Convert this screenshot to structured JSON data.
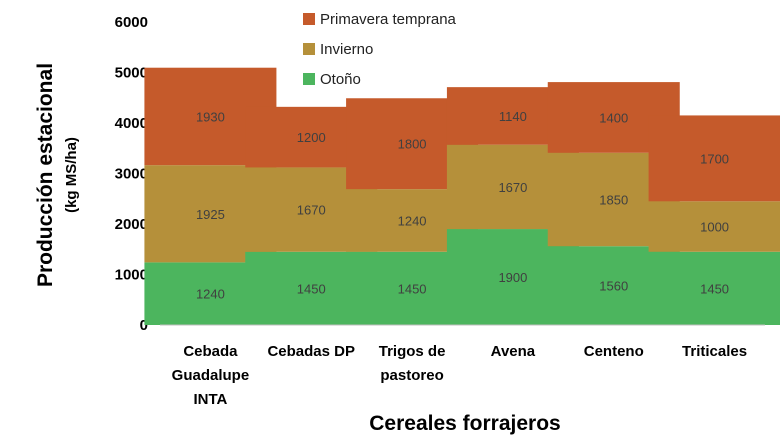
{
  "chart_data": {
    "type": "bar",
    "stacked": true,
    "title": "",
    "xlabel": "Cereales forrajeros",
    "ylabel": "Producción estacional",
    "ylabel_unit": "(kg MS/ha)",
    "ylim": [
      0,
      6000
    ],
    "yticks": [
      "0",
      "1000",
      "2000",
      "3000",
      "4000",
      "5000",
      "6000"
    ],
    "grid": false,
    "legend_position": "top-center",
    "categories": [
      [
        "Cebada",
        "Guadalupe",
        "INTA"
      ],
      [
        "Cebadas DP"
      ],
      [
        "Trigos de",
        "pastoreo"
      ],
      [
        "Avena"
      ],
      [
        "Centeno"
      ],
      [
        "Triticales"
      ]
    ],
    "series": [
      {
        "name": "Otoño",
        "color": "#4CB55E",
        "values": [
          1240,
          1450,
          1450,
          1900,
          1560,
          1450
        ]
      },
      {
        "name": "Invierno",
        "color": "#B5903A",
        "values": [
          1925,
          1670,
          1240,
          1670,
          1850,
          1000
        ]
      },
      {
        "name": "Primavera temprana",
        "color": "#C55A2B",
        "values": [
          1930,
          1200,
          1800,
          1140,
          1400,
          1700
        ]
      }
    ],
    "legend_order": [
      "Primavera temprana",
      "Invierno",
      "Otoño"
    ]
  }
}
